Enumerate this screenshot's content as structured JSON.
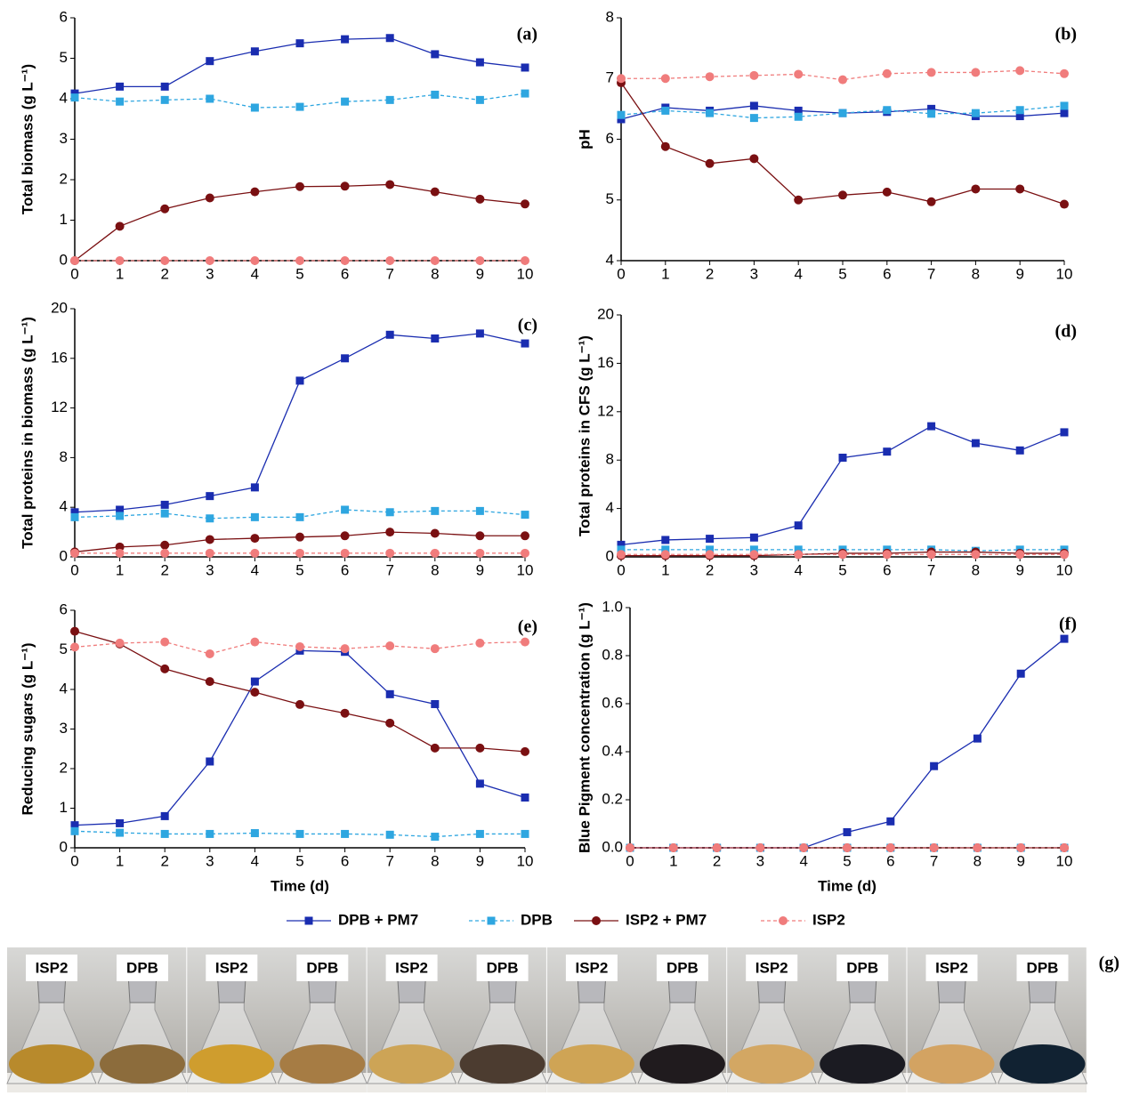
{
  "chart_data": [
    {
      "type": "line",
      "panel": "(a)",
      "ylabel": "Total biomass (g L⁻¹)",
      "x": [
        0,
        1,
        2,
        3,
        4,
        5,
        6,
        7,
        8,
        9,
        10
      ],
      "xlim": [
        0,
        10
      ],
      "xticks": [
        0,
        1,
        2,
        3,
        4,
        5,
        6,
        7,
        8,
        9,
        10
      ],
      "ylim": [
        0,
        6
      ],
      "yticks": [
        0,
        1,
        2,
        3,
        4,
        5,
        6
      ],
      "series": [
        {
          "name": "DPB + PM7",
          "color": "#1a2db0",
          "marker": "square",
          "linestyle": "solid",
          "values": [
            4.13,
            4.3,
            4.3,
            4.93,
            5.17,
            5.37,
            5.47,
            5.5,
            5.1,
            4.9,
            4.77
          ]
        },
        {
          "name": "DPB",
          "color": "#2ea6e0",
          "marker": "square",
          "linestyle": "dashed",
          "values": [
            4.03,
            3.93,
            3.97,
            4.0,
            3.78,
            3.8,
            3.93,
            3.97,
            4.1,
            3.97,
            4.13
          ]
        },
        {
          "name": "ISP2 + PM7",
          "color": "#7a1012",
          "marker": "circle",
          "linestyle": "solid",
          "values": [
            0,
            0.85,
            1.28,
            1.55,
            1.7,
            1.83,
            1.84,
            1.88,
            1.7,
            1.52,
            1.4
          ]
        },
        {
          "name": "ISP2",
          "color": "#f07c7c",
          "marker": "circle",
          "linestyle": "dashed",
          "values": [
            0,
            0,
            0,
            0,
            0,
            0,
            0,
            0,
            0,
            0,
            0
          ]
        }
      ]
    },
    {
      "type": "line",
      "panel": "(b)",
      "ylabel": "pH",
      "x": [
        0,
        1,
        2,
        3,
        4,
        5,
        6,
        7,
        8,
        9,
        10
      ],
      "xlim": [
        0,
        10
      ],
      "xticks": [
        0,
        1,
        2,
        3,
        4,
        5,
        6,
        7,
        8,
        9,
        10
      ],
      "ylim": [
        4,
        8
      ],
      "yticks": [
        4,
        5,
        6,
        7,
        8
      ],
      "series": [
        {
          "name": "DPB + PM7",
          "color": "#1a2db0",
          "marker": "square",
          "linestyle": "solid",
          "values": [
            6.33,
            6.52,
            6.47,
            6.55,
            6.47,
            6.43,
            6.45,
            6.5,
            6.38,
            6.38,
            6.43
          ]
        },
        {
          "name": "DPB",
          "color": "#2ea6e0",
          "marker": "square",
          "linestyle": "dashed",
          "values": [
            6.4,
            6.47,
            6.43,
            6.35,
            6.37,
            6.43,
            6.48,
            6.42,
            6.43,
            6.48,
            6.55
          ]
        },
        {
          "name": "ISP2 + PM7",
          "color": "#7a1012",
          "marker": "circle",
          "linestyle": "solid",
          "values": [
            6.93,
            5.88,
            5.6,
            5.68,
            5.0,
            5.08,
            5.13,
            4.97,
            5.18,
            5.18,
            4.93
          ]
        },
        {
          "name": "ISP2",
          "color": "#f07c7c",
          "marker": "circle",
          "linestyle": "dashed",
          "values": [
            7.0,
            7.0,
            7.03,
            7.05,
            7.07,
            6.98,
            7.08,
            7.1,
            7.1,
            7.13,
            7.08
          ]
        }
      ]
    },
    {
      "type": "line",
      "panel": "(c)",
      "ylabel": "Total proteins in biomass (g L⁻¹)",
      "x": [
        0,
        1,
        2,
        3,
        4,
        5,
        6,
        7,
        8,
        9,
        10
      ],
      "xlim": [
        0,
        10
      ],
      "xticks": [
        0,
        1,
        2,
        3,
        4,
        5,
        6,
        7,
        8,
        9,
        10
      ],
      "ylim": [
        0,
        20
      ],
      "yticks": [
        0,
        4,
        8,
        12,
        16,
        20
      ],
      "series": [
        {
          "name": "DPB + PM7",
          "color": "#1a2db0",
          "marker": "square",
          "linestyle": "solid",
          "values": [
            3.6,
            3.8,
            4.2,
            4.9,
            5.6,
            14.2,
            16.0,
            17.9,
            17.6,
            18.0,
            17.2
          ]
        },
        {
          "name": "DPB",
          "color": "#2ea6e0",
          "marker": "square",
          "linestyle": "dashed",
          "values": [
            3.2,
            3.3,
            3.5,
            3.1,
            3.2,
            3.2,
            3.8,
            3.6,
            3.7,
            3.7,
            3.4
          ]
        },
        {
          "name": "ISP2 + PM7",
          "color": "#7a1012",
          "marker": "circle",
          "linestyle": "solid",
          "values": [
            0.4,
            0.8,
            0.95,
            1.4,
            1.5,
            1.6,
            1.7,
            2.0,
            1.9,
            1.7,
            1.7
          ]
        },
        {
          "name": "ISP2",
          "color": "#f07c7c",
          "marker": "circle",
          "linestyle": "dashed",
          "values": [
            0.3,
            0.3,
            0.3,
            0.3,
            0.3,
            0.3,
            0.3,
            0.3,
            0.3,
            0.3,
            0.3
          ]
        }
      ]
    },
    {
      "type": "line",
      "panel": "(d)",
      "ylabel": "Total proteins in CFS (g L⁻¹)",
      "x": [
        0,
        1,
        2,
        3,
        4,
        5,
        6,
        7,
        8,
        9,
        10
      ],
      "xlim": [
        0,
        10
      ],
      "xticks": [
        0,
        1,
        2,
        3,
        4,
        5,
        6,
        7,
        8,
        9,
        10
      ],
      "ylim": [
        0,
        20
      ],
      "yticks": [
        0,
        4,
        8,
        12,
        16,
        20
      ],
      "series": [
        {
          "name": "DPB + PM7",
          "color": "#1a2db0",
          "marker": "square",
          "linestyle": "solid",
          "values": [
            1.0,
            1.4,
            1.5,
            1.6,
            2.6,
            8.2,
            8.7,
            10.8,
            9.4,
            8.8,
            10.3
          ]
        },
        {
          "name": "DPB",
          "color": "#2ea6e0",
          "marker": "square",
          "linestyle": "dashed",
          "values": [
            0.6,
            0.6,
            0.6,
            0.6,
            0.6,
            0.6,
            0.6,
            0.6,
            0.5,
            0.6,
            0.6
          ]
        },
        {
          "name": "ISP2 + PM7",
          "color": "#7a1012",
          "marker": "circle",
          "linestyle": "solid",
          "values": [
            0.1,
            0.1,
            0.1,
            0.1,
            0.2,
            0.3,
            0.3,
            0.4,
            0.4,
            0.3,
            0.3
          ]
        },
        {
          "name": "ISP2",
          "color": "#f07c7c",
          "marker": "circle",
          "linestyle": "dashed",
          "values": [
            0.2,
            0.2,
            0.2,
            0.2,
            0.2,
            0.2,
            0.2,
            0.2,
            0.2,
            0.2,
            0.2
          ]
        }
      ]
    },
    {
      "type": "line",
      "panel": "(e)",
      "ylabel": "Reducing sugars (g L⁻¹)",
      "xlabel": "Time (d)",
      "x": [
        0,
        1,
        2,
        3,
        4,
        5,
        6,
        7,
        8,
        9,
        10
      ],
      "xlim": [
        0,
        10
      ],
      "xticks": [
        0,
        1,
        2,
        3,
        4,
        5,
        6,
        7,
        8,
        9,
        10
      ],
      "ylim": [
        0,
        6
      ],
      "yticks": [
        0,
        1,
        2,
        3,
        4,
        5,
        6
      ],
      "series": [
        {
          "name": "DPB + PM7",
          "color": "#1a2db0",
          "marker": "square",
          "linestyle": "solid",
          "values": [
            0.57,
            0.62,
            0.8,
            2.18,
            4.2,
            4.98,
            4.95,
            3.88,
            3.63,
            1.62,
            1.27
          ]
        },
        {
          "name": "DPB",
          "color": "#2ea6e0",
          "marker": "square",
          "linestyle": "dashed",
          "values": [
            0.42,
            0.38,
            0.35,
            0.35,
            0.37,
            0.35,
            0.35,
            0.33,
            0.28,
            0.35,
            0.35
          ]
        },
        {
          "name": "ISP2 + PM7",
          "color": "#7a1012",
          "marker": "circle",
          "linestyle": "solid",
          "values": [
            5.47,
            5.15,
            4.52,
            4.2,
            3.93,
            3.62,
            3.4,
            3.15,
            2.52,
            2.52,
            2.43
          ]
        },
        {
          "name": "ISP2",
          "color": "#f07c7c",
          "marker": "circle",
          "linestyle": "dashed",
          "values": [
            5.07,
            5.17,
            5.2,
            4.9,
            5.2,
            5.08,
            5.03,
            5.1,
            5.03,
            5.17,
            5.2
          ]
        }
      ]
    },
    {
      "type": "line",
      "panel": "(f)",
      "ylabel": "Blue Pigment concentration (g L⁻¹)",
      "xlabel": "Time (d)",
      "x": [
        0,
        1,
        2,
        3,
        4,
        5,
        6,
        7,
        8,
        9,
        10
      ],
      "xlim": [
        0,
        10
      ],
      "xticks": [
        0,
        1,
        2,
        3,
        4,
        5,
        6,
        7,
        8,
        9,
        10
      ],
      "ylim": [
        0,
        1
      ],
      "yticks": [
        {
          "value": 0,
          "label": "0.0"
        },
        0.2,
        0.4,
        0.6,
        0.8,
        {
          "value": 1,
          "label": "1.0"
        }
      ],
      "series": [
        {
          "name": "DPB + PM7",
          "color": "#1a2db0",
          "marker": "square",
          "linestyle": "solid",
          "values": [
            0,
            0,
            0,
            0,
            0,
            0.065,
            0.11,
            0.34,
            0.455,
            0.725,
            0.87
          ]
        },
        {
          "name": "DPB",
          "color": "#2ea6e0",
          "marker": "square",
          "linestyle": "dashed",
          "values": [
            0,
            0,
            0,
            0,
            0,
            0,
            0,
            0,
            0,
            0,
            0
          ]
        },
        {
          "name": "ISP2 + PM7",
          "color": "#7a1012",
          "marker": "circle",
          "linestyle": "solid",
          "values": [
            0,
            0,
            0,
            0,
            0,
            0,
            0,
            0,
            0,
            0,
            0
          ]
        },
        {
          "name": "ISP2",
          "color": "#f07c7c",
          "marker": "circle",
          "linestyle": "dashed",
          "values": [
            0,
            0,
            0,
            0,
            0,
            0,
            0,
            0,
            0,
            0,
            0
          ]
        }
      ]
    }
  ],
  "photos": {
    "label": "(g)",
    "flasks": [
      [
        "ISP2",
        "DPB"
      ],
      [
        "ISP2",
        "DPB"
      ],
      [
        "ISP2",
        "DPB"
      ],
      [
        "ISP2",
        "DPB"
      ],
      [
        "ISP2",
        "DPB"
      ],
      [
        "ISP2",
        "DPB"
      ]
    ]
  }
}
